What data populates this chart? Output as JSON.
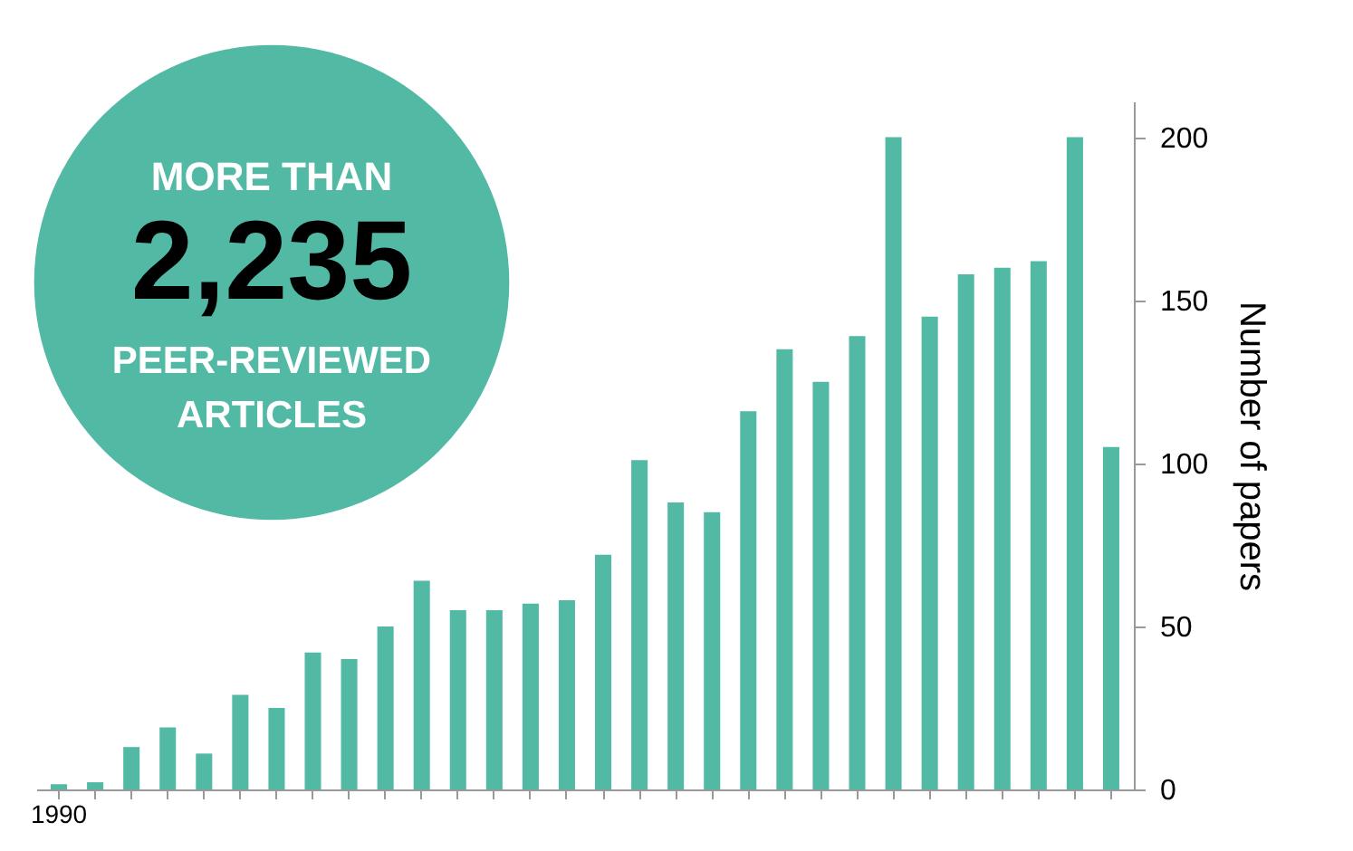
{
  "chart_data": {
    "type": "bar",
    "categories": [
      "1990",
      null,
      null,
      null,
      null,
      null,
      null,
      null,
      null,
      null,
      null,
      null,
      null,
      null,
      null,
      null,
      null,
      null,
      null,
      null,
      null,
      null,
      null,
      null,
      null,
      null,
      null,
      null,
      null,
      null
    ],
    "values": [
      1.6,
      2.2,
      13,
      19,
      11,
      29,
      25,
      42,
      40,
      50,
      64,
      55,
      55,
      57,
      58,
      72,
      101,
      88,
      85,
      116,
      135,
      125,
      139,
      200,
      145,
      158,
      160,
      162,
      200,
      105
    ],
    "color": "#52b9a5",
    "ylabel": "Number of papers",
    "ylim": [
      0,
      211
    ],
    "yticks": [
      0,
      50,
      100,
      150,
      200
    ],
    "grid": false,
    "annotations": [
      "MORE THAN",
      "2,235",
      "PEER-REVIEWED",
      "ARTICLES"
    ]
  }
}
